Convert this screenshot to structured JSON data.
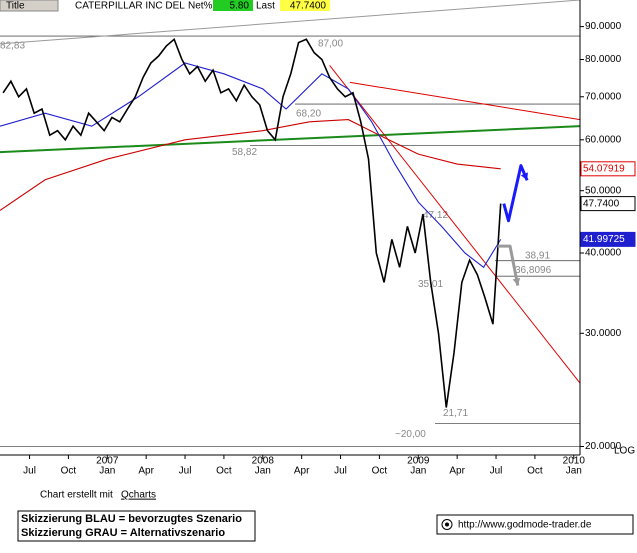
{
  "chart_data": {
    "type": "line",
    "title": "CATERPILLAR INC DEL",
    "header": {
      "tab": "Title",
      "net_label": "Net%",
      "net": {
        "value": 5.8,
        "label": "5.80"
      },
      "last_label": "Last",
      "last": {
        "value": 47.74,
        "label": "47.7400"
      }
    },
    "log_scale": true,
    "xlim": [
      2006.31,
      2010.04
    ],
    "ylim": [
      19.4,
      99
    ],
    "yticks": [
      {
        "value": 20,
        "label": "20.0000"
      },
      {
        "value": 30,
        "label": "30.0000"
      },
      {
        "value": 40,
        "label": "40.0000"
      },
      {
        "value": 50,
        "label": "50.0000"
      },
      {
        "value": 60,
        "label": "60.0000"
      },
      {
        "value": 70,
        "label": "70.0000"
      },
      {
        "value": 80,
        "label": "80.0000"
      },
      {
        "value": 90,
        "label": "90.0000"
      }
    ],
    "scale_label": "LOG",
    "xticks": [
      {
        "value": 2006.5,
        "label": "Jul"
      },
      {
        "value": 2006.75,
        "label": "Oct"
      },
      {
        "value": 2007,
        "label": "Jan"
      },
      {
        "value": 2007.25,
        "label": "Apr"
      },
      {
        "value": 2007.5,
        "label": "Jul"
      },
      {
        "value": 2007.75,
        "label": "Oct"
      },
      {
        "value": 2008,
        "label": "Jan"
      },
      {
        "value": 2008.25,
        "label": "Apr"
      },
      {
        "value": 2008.5,
        "label": "Jul"
      },
      {
        "value": 2008.75,
        "label": "Oct"
      },
      {
        "value": 2009,
        "label": "Jan"
      },
      {
        "value": 2009.25,
        "label": "Apr"
      },
      {
        "value": 2009.5,
        "label": "Jul"
      },
      {
        "value": 2009.75,
        "label": "Oct"
      },
      {
        "value": 2010,
        "label": "Jan"
      }
    ],
    "years": [
      2007,
      2008,
      2009,
      2010
    ],
    "series": [
      {
        "color": "#000000",
        "x": [
          2006.33,
          2006.38,
          2006.43,
          2006.48,
          2006.53,
          2006.58,
          2006.63,
          2006.68,
          2006.73,
          2006.78,
          2006.83,
          2006.88,
          2006.93,
          2006.98,
          2007.03,
          2007.08,
          2007.13,
          2007.18,
          2007.23,
          2007.28,
          2007.33,
          2007.38,
          2007.43,
          2007.48,
          2007.53,
          2007.58,
          2007.63,
          2007.68,
          2007.73,
          2007.78,
          2007.83,
          2007.88,
          2007.93,
          2007.98,
          2008.03,
          2008.08,
          2008.13,
          2008.18,
          2008.23,
          2008.28,
          2008.33,
          2008.38,
          2008.43,
          2008.48,
          2008.53,
          2008.58,
          2008.63,
          2008.68,
          2008.73,
          2008.78,
          2008.83,
          2008.88,
          2008.93,
          2008.98,
          2009.03,
          2009.08,
          2009.13,
          2009.18,
          2009.23,
          2009.28,
          2009.33,
          2009.38,
          2009.43,
          2009.48,
          2009.53
        ],
        "values": [
          71,
          74,
          70,
          72,
          66,
          67,
          61,
          62,
          60,
          63,
          61,
          66,
          64,
          62,
          65,
          64,
          67,
          70,
          75,
          79,
          81,
          84,
          86,
          80,
          76,
          78,
          74,
          77,
          71,
          72,
          69,
          73,
          70,
          68,
          62,
          60,
          70,
          76,
          85,
          86,
          82,
          80,
          75,
          72,
          70,
          71,
          64,
          56,
          40,
          36,
          42,
          38,
          44,
          40,
          46,
          36,
          30,
          23,
          28,
          36,
          39,
          37,
          34,
          31,
          47.74
        ]
      },
      {
        "color": "#1f1fcf",
        "x": [
          2006.31,
          2006.6,
          2006.9,
          2007.2,
          2007.5,
          2007.75,
          2008.0,
          2008.15,
          2008.38,
          2008.55,
          2008.7,
          2008.85,
          2009.0,
          2009.15,
          2009.3,
          2009.42,
          2009.53
        ],
        "values": [
          63,
          66,
          63,
          70,
          79,
          76,
          72,
          67,
          76,
          72,
          64,
          55,
          48,
          44,
          40,
          38,
          41.99725
        ]
      },
      {
        "color": "#cc0000",
        "x": [
          2006.31,
          2006.6,
          2007.0,
          2007.5,
          2008.0,
          2008.3,
          2008.55,
          2008.75,
          2009.0,
          2009.25,
          2009.53
        ],
        "values": [
          46.6,
          52,
          56,
          60,
          62,
          64,
          64.5,
          61,
          57,
          55,
          54.07919
        ]
      }
    ],
    "trendlines": [
      {
        "color": "#999999",
        "x": [
          2006.31,
          2010.04
        ],
        "values": [
          84.6,
          99
        ]
      },
      {
        "color": "#1a8a1a",
        "x": [
          2006.31,
          2010.04
        ],
        "values": [
          57.4,
          63.0
        ]
      },
      {
        "color": "#dd0000",
        "x": [
          2008.43,
          2010.04
        ],
        "values": [
          78.3,
          25.1
        ]
      },
      {
        "color": "#dd0000",
        "x": [
          2008.56,
          2010.04
        ],
        "values": [
          73.7,
          64.5
        ]
      }
    ],
    "annotations": [
      {
        "value": 82.83,
        "label": "82,83"
      },
      {
        "value": 87,
        "label": "87,00"
      },
      {
        "value": 68.2,
        "label": "68,20"
      },
      {
        "value": 58.82,
        "label": "58,82"
      },
      {
        "value": 47.12,
        "label": "47,12"
      },
      {
        "value": 35.01,
        "label": "35,01"
      },
      {
        "value": 21.71,
        "label": "21,71"
      },
      {
        "value": 20,
        "label": "~20,00"
      },
      {
        "value": 38.91,
        "label": "38,91"
      },
      {
        "value": 36.8096,
        "label": "36,8096"
      }
    ],
    "price_tags": [
      {
        "value": 54.07919,
        "label": "54.07919",
        "color": "#e00000"
      },
      {
        "value": 47.74,
        "label": "47.7400",
        "color": "#000000"
      },
      {
        "value": 41.99725,
        "label": "41.99725",
        "color": "#1f1fcf"
      }
    ],
    "scenarios": [
      {
        "name": "Skizzierung BLAU = bevorzugtes Szenario",
        "color": "#1a1aff",
        "x": [
          2009.55,
          2009.58,
          2009.66,
          2009.7
        ],
        "values": [
          47.74,
          44.9,
          54.7,
          51.9
        ]
      },
      {
        "name": "Skizzierung GRAU = Alternativszenario",
        "color": "#9a9a9a",
        "x": [
          2009.51,
          2009.59,
          2009.64
        ],
        "values": [
          41.0,
          41.0,
          35.6
        ]
      }
    ],
    "credit": "Chart erstellt mit",
    "credit_link": "Qcharts",
    "url": "http://www.godmode-trader.de"
  }
}
